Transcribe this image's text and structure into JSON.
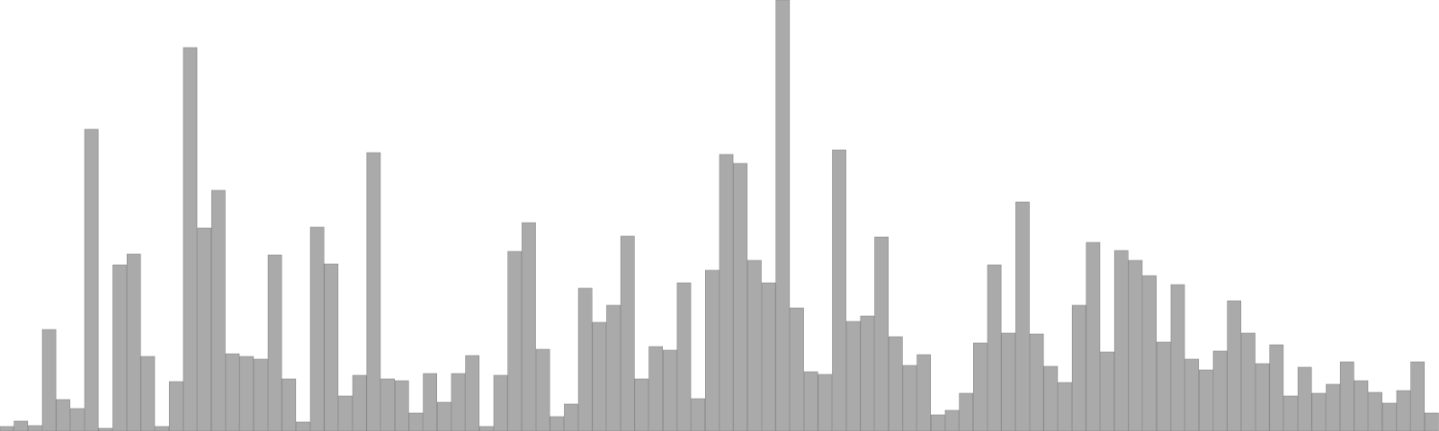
{
  "chart_data": {
    "type": "bar",
    "title": "",
    "xlabel": "",
    "ylabel": "",
    "ylim": [
      0,
      480
    ],
    "grid": false,
    "bar_color": "#aaaaaa",
    "bar_edge_color": "#888888",
    "values": [
      5,
      11,
      6,
      113,
      35,
      25,
      336,
      3,
      185,
      197,
      83,
      5,
      55,
      427,
      226,
      268,
      86,
      83,
      80,
      196,
      58,
      10,
      227,
      186,
      39,
      62,
      310,
      58,
      56,
      20,
      64,
      32,
      64,
      84,
      5,
      62,
      200,
      232,
      91,
      16,
      30,
      159,
      121,
      140,
      217,
      58,
      94,
      90,
      165,
      36,
      179,
      308,
      298,
      190,
      165,
      480,
      137,
      66,
      63,
      313,
      122,
      128,
      216,
      105,
      73,
      85,
      18,
      23,
      42,
      98,
      185,
      109,
      255,
      108,
      72,
      54,
      140,
      210,
      88,
      201,
      190,
      173,
      99,
      163,
      80,
      68,
      89,
      145,
      109,
      75,
      96,
      39,
      71,
      42,
      52,
      77,
      56,
      43,
      31,
      45,
      77,
      20
    ]
  }
}
